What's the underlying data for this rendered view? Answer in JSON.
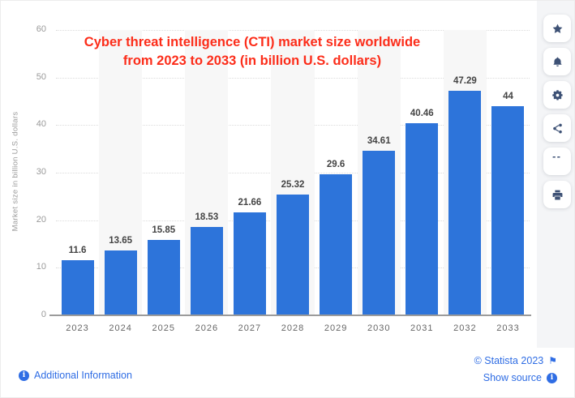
{
  "chart": {
    "title_line1": "Cyber threat intelligence (CTI) market size worldwide",
    "title_line2": "from 2023 to 2033 (in billion U.S. dollars)",
    "y_axis_title": "Market size in billion U.S. dollars"
  },
  "chart_data": {
    "type": "bar",
    "title": "Cyber threat intelligence (CTI) market size worldwide from 2023 to 2033 (in billion U.S. dollars)",
    "categories": [
      "2023",
      "2024",
      "2025",
      "2026",
      "2027",
      "2028",
      "2029",
      "2030",
      "2031",
      "2032",
      "2033"
    ],
    "values": [
      11.6,
      13.65,
      15.85,
      18.53,
      21.66,
      25.32,
      29.6,
      34.61,
      40.46,
      47.29,
      44
    ],
    "value_labels": [
      "11.6",
      "13.65",
      "15.85",
      "18.53",
      "21.66",
      "25.32",
      "29.6",
      "34.61",
      "40.46",
      "47.29",
      "44"
    ],
    "xlabel": "",
    "ylabel": "Market size in billion U.S. dollars",
    "ylim": [
      0,
      60
    ],
    "yticks": [
      60,
      50,
      40,
      30,
      20,
      10,
      0
    ],
    "grid": "horizontal-dotted",
    "legend": "none",
    "alternating_column_bands": true
  },
  "colors": {
    "bar": "#2d74da",
    "title": "#fc2d1a",
    "link": "#2f6de4",
    "icon": "#3d5175",
    "column_band": "#f7f7f7",
    "gridline": "#dcdcdc",
    "axis_line": "#9b9b9b",
    "tick_text": "#9a9a9a",
    "year_text": "#666666",
    "value_text": "#444444",
    "rail_background": "#f4f5f7"
  },
  "toolbar": {
    "buttons": [
      {
        "id": "favorite",
        "icon": "star-icon"
      },
      {
        "id": "alerts",
        "icon": "bell-icon"
      },
      {
        "id": "settings",
        "icon": "gear-icon"
      },
      {
        "id": "share",
        "icon": "share-icon"
      },
      {
        "id": "cite",
        "icon": "quote-icon"
      },
      {
        "id": "print",
        "icon": "printer-icon"
      }
    ]
  },
  "footer": {
    "additional_info_label": "Additional Information",
    "copyright": "© Statista 2023",
    "show_source_label": "Show source"
  }
}
